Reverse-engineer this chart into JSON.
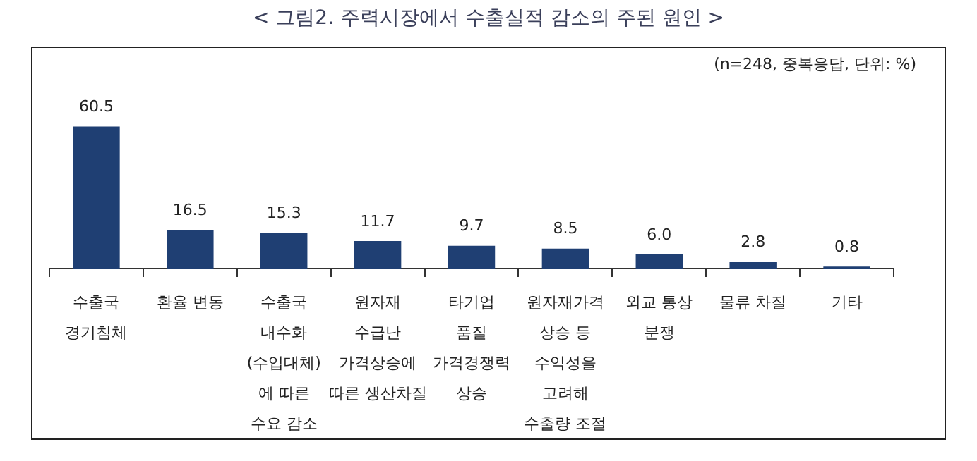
{
  "chart_data": {
    "type": "bar",
    "title": "< 그림2. 주력시장에서 수출실적 감소의 주된 원인 >",
    "annotations": [
      "(n=248, 중복응답, 단위: %)"
    ],
    "categories": [
      "수출국\n경기침체",
      "환율 변동",
      "수출국\n내수화\n(수입대체)\n에 따른\n수요 감소",
      "원자재\n수급난\n가격상승에\n따른 생산차질",
      "타기업\n품질\n가격경쟁력\n상승",
      "원자재가격\n상승 등\n수익성을\n고려해\n수출량 조절",
      "외교 통상\n분쟁",
      "물류 차질",
      "기타"
    ],
    "values": [
      60.5,
      16.5,
      15.3,
      11.7,
      9.7,
      8.5,
      6.0,
      2.8,
      0.8
    ],
    "value_labels": [
      "60.5",
      "16.5",
      "15.3",
      "11.7",
      "9.7",
      "8.5",
      "6.0",
      "2.8",
      "0.8"
    ],
    "color": "#1f3f73",
    "grid": false,
    "legend": false
  }
}
